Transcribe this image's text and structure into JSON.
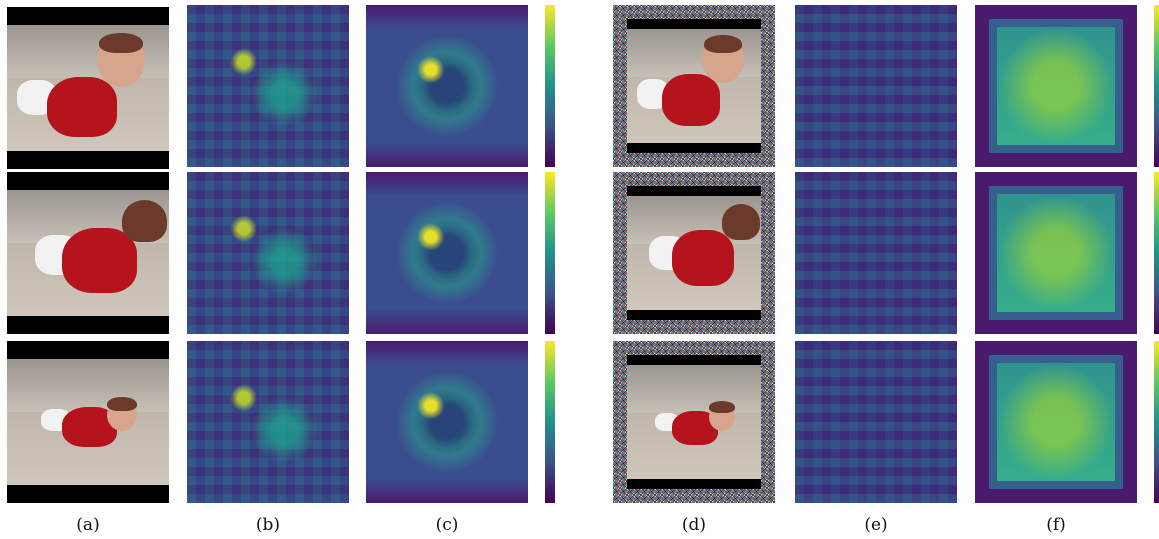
{
  "captions": {
    "a": "(a)",
    "b": "(b)",
    "c": "(c)",
    "d": "(d)",
    "e": "(e)",
    "f": "(f)"
  },
  "colorbar": {
    "colormap": [
      "#fde725",
      "#5ec962",
      "#21918c",
      "#3b528b",
      "#440154"
    ]
  }
}
